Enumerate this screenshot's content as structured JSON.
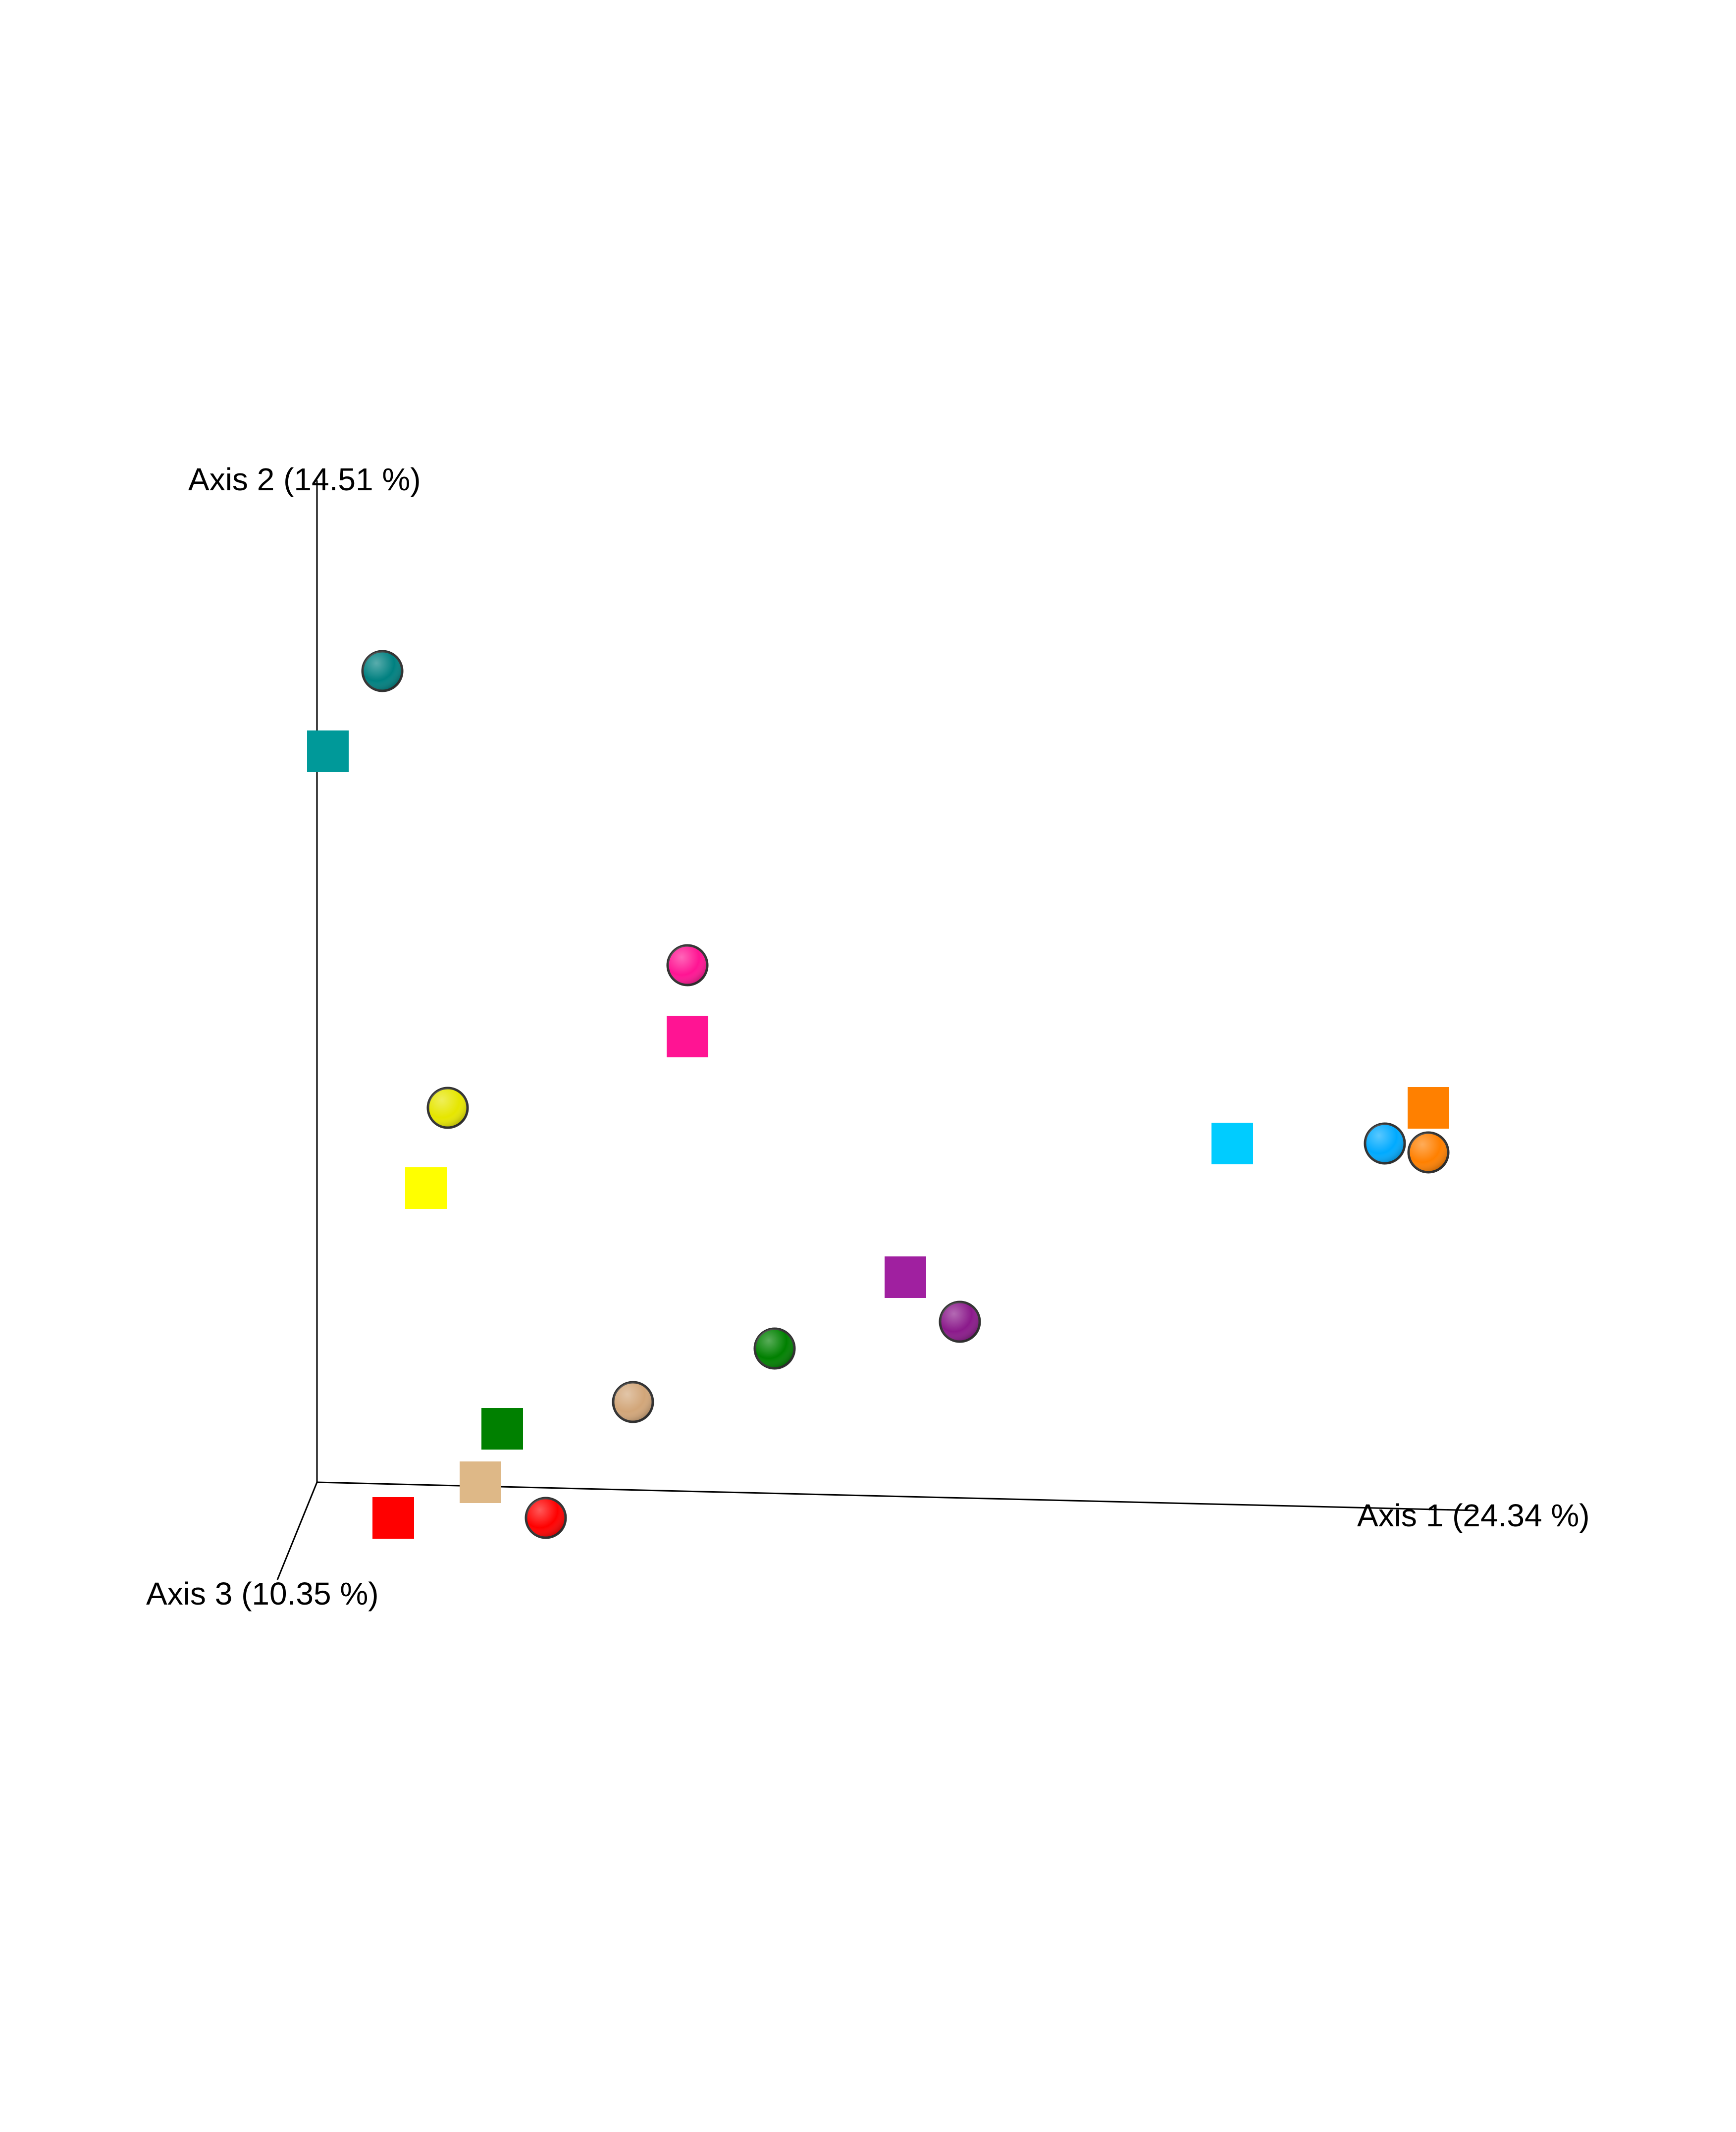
{
  "chart_data": {
    "type": "scatter",
    "title": "",
    "axes": {
      "x": {
        "label": "Axis 1 (24.34 %)"
      },
      "y": {
        "label": "Axis 2 (14.51 %)"
      },
      "z": {
        "label": "Axis 3 (10.35 %)"
      }
    },
    "grid": false,
    "legend": "none",
    "series": [
      {
        "marker": "circle",
        "color": "#008080",
        "x": 0.06,
        "y": 0.91
      },
      {
        "marker": "square",
        "color": "#009999",
        "x": 0.01,
        "y": 0.82
      },
      {
        "marker": "circle",
        "color": "#ff1493",
        "x": 0.34,
        "y": 0.58
      },
      {
        "marker": "square",
        "color": "#ff1493",
        "x": 0.34,
        "y": 0.5
      },
      {
        "marker": "circle",
        "color": "#e6e600",
        "x": 0.12,
        "y": 0.42
      },
      {
        "marker": "square",
        "color": "#ffff00",
        "x": 0.1,
        "y": 0.33
      },
      {
        "marker": "square",
        "color": "#00ccff",
        "x": 0.84,
        "y": 0.38
      },
      {
        "marker": "circle",
        "color": "#00aaff",
        "x": 0.98,
        "y": 0.38
      },
      {
        "marker": "square",
        "color": "#ff8000",
        "x": 1.02,
        "y": 0.42
      },
      {
        "marker": "circle",
        "color": "#ff8000",
        "x": 1.02,
        "y": 0.37
      },
      {
        "marker": "square",
        "color": "#a020a0",
        "x": 0.54,
        "y": 0.23
      },
      {
        "marker": "circle",
        "color": "#8b1a8b",
        "x": 0.59,
        "y": 0.18
      },
      {
        "marker": "circle",
        "color": "#008000",
        "x": 0.42,
        "y": 0.15
      },
      {
        "marker": "circle",
        "color": "#d2a679",
        "x": 0.29,
        "y": 0.09
      },
      {
        "marker": "square",
        "color": "#008000",
        "x": 0.17,
        "y": 0.06
      },
      {
        "marker": "square",
        "color": "#deb887",
        "x": 0.15,
        "y": 0.0
      },
      {
        "marker": "square",
        "color": "#ff0000",
        "x": 0.07,
        "y": -0.04
      },
      {
        "marker": "circle",
        "color": "#ff0000",
        "x": 0.21,
        "y": -0.04
      }
    ]
  }
}
